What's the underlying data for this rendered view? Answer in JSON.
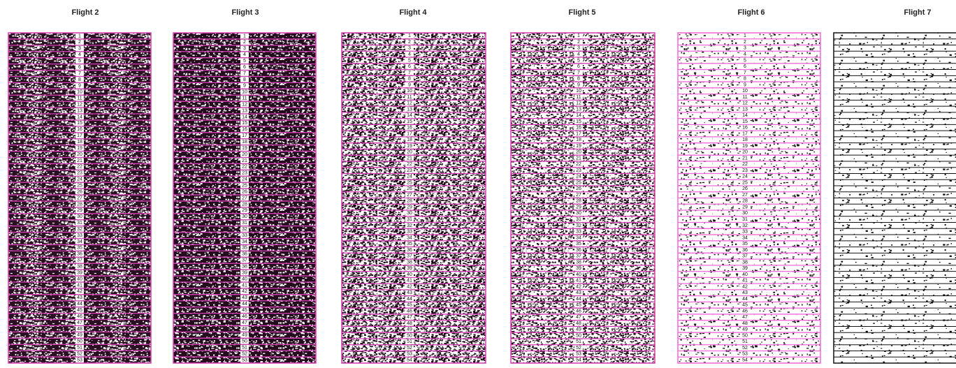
{
  "panels": [
    {
      "title": "Flight 2",
      "rows": [
        1,
        2,
        3,
        4,
        5,
        6,
        7,
        8,
        9,
        10,
        11,
        12,
        13,
        14,
        15,
        16,
        17,
        18,
        19,
        20,
        21,
        22,
        23,
        24,
        25,
        26,
        27,
        28,
        29,
        30,
        31,
        32,
        33,
        34,
        35,
        36,
        37,
        38,
        39,
        40,
        41,
        42,
        43,
        44,
        45,
        46,
        47,
        48,
        49,
        50,
        51,
        52,
        53
      ]
    },
    {
      "title": "Flight 3",
      "rows": [
        1,
        2,
        3,
        4,
        5,
        6,
        7,
        8,
        9,
        10,
        11,
        12,
        13,
        14,
        15,
        16,
        17,
        18,
        19,
        20,
        21,
        22,
        23,
        24,
        25,
        26,
        27,
        28,
        29,
        30,
        31,
        32,
        33,
        34,
        35,
        36,
        37,
        38,
        39,
        40,
        41,
        42,
        43,
        44,
        45,
        46,
        47,
        48,
        49,
        50,
        51,
        52,
        53
      ]
    },
    {
      "title": "Flight 4",
      "rows": [
        1,
        2,
        3,
        4,
        5,
        6,
        7,
        8,
        9,
        10,
        11,
        12,
        13,
        14,
        15,
        16,
        17,
        18,
        19,
        20,
        21,
        22,
        23,
        24,
        25,
        26,
        27,
        28,
        29,
        30,
        31,
        32,
        33,
        34,
        35,
        36,
        37,
        38,
        39,
        40,
        41,
        42,
        43,
        44,
        45,
        46,
        47,
        48,
        49,
        50,
        51,
        52,
        53,
        54
      ]
    },
    {
      "title": "Flight 5",
      "rows": [
        1,
        2,
        3,
        4,
        5,
        6,
        7,
        8,
        9,
        10,
        11,
        12,
        13,
        14,
        15,
        16,
        17,
        18,
        19,
        20,
        21,
        22,
        23,
        24,
        25,
        26,
        27,
        28,
        29,
        30,
        31,
        32,
        33,
        34,
        35,
        36,
        37,
        38,
        39,
        40,
        41,
        42,
        43,
        44,
        45,
        46,
        47,
        48,
        49,
        50,
        51,
        52,
        53,
        54
      ]
    },
    {
      "title": "Flight 6",
      "rows": [
        1,
        2,
        3,
        4,
        5,
        6,
        7,
        8,
        9,
        10,
        11,
        12,
        13,
        14,
        15,
        16,
        17,
        18,
        19,
        20,
        21,
        22,
        23,
        24,
        25,
        26,
        27,
        28,
        29,
        30,
        31,
        32,
        33,
        34,
        35,
        36,
        37,
        38,
        39,
        40,
        41,
        42,
        43,
        44,
        45,
        46,
        47,
        48,
        49,
        50,
        51,
        52,
        53,
        54
      ]
    },
    {
      "title": "Flight 7",
      "rows": []
    }
  ]
}
